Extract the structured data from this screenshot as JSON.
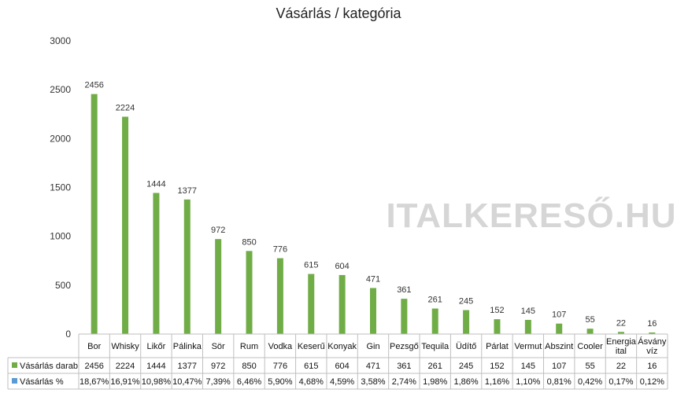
{
  "chart_data": {
    "type": "bar",
    "title": "Vásárlás / kategória",
    "ylim": [
      0,
      3000
    ],
    "yticks": [
      0,
      500,
      1000,
      1500,
      2000,
      2500,
      3000
    ],
    "grid": false,
    "legend": "data-table",
    "categories": [
      [
        "Bor"
      ],
      [
        "Whisky"
      ],
      [
        "Likőr"
      ],
      [
        "Pálinka"
      ],
      [
        "Sör"
      ],
      [
        "Rum"
      ],
      [
        "Vodka"
      ],
      [
        "Keserű"
      ],
      [
        "Konyak"
      ],
      [
        "Gin"
      ],
      [
        "Pezsgő"
      ],
      [
        "Tequila"
      ],
      [
        "Üdítő"
      ],
      [
        "Párlat"
      ],
      [
        "Vermut"
      ],
      [
        "Abszint"
      ],
      [
        "Cooler"
      ],
      [
        "Energia",
        "ital"
      ],
      [
        "Ásvány",
        "víz"
      ]
    ],
    "series": [
      {
        "name": "Vásárlás darab",
        "color": "#70ad47",
        "values": [
          2456,
          2224,
          1444,
          1377,
          972,
          850,
          776,
          615,
          604,
          471,
          361,
          261,
          245,
          152,
          145,
          107,
          55,
          22,
          16
        ]
      },
      {
        "name": "Vásárlás %",
        "color": "#5b9bd5",
        "values": [
          18.67,
          16.91,
          10.98,
          10.47,
          7.39,
          6.46,
          5.9,
          4.68,
          4.59,
          3.58,
          2.74,
          1.98,
          1.86,
          1.16,
          1.1,
          0.81,
          0.42,
          0.17,
          0.12
        ],
        "labels": [
          "18,67%",
          "16,91%",
          "10,98%",
          "10,47%",
          "7,39%",
          "6,46%",
          "5,90%",
          "4,68%",
          "4,59%",
          "3,58%",
          "2,74%",
          "1,98%",
          "1,86%",
          "1,16%",
          "1,10%",
          "0,81%",
          "0,42%",
          "0,17%",
          "0,12%"
        ]
      }
    ]
  },
  "watermark": "ITALKERESŐ.HU"
}
